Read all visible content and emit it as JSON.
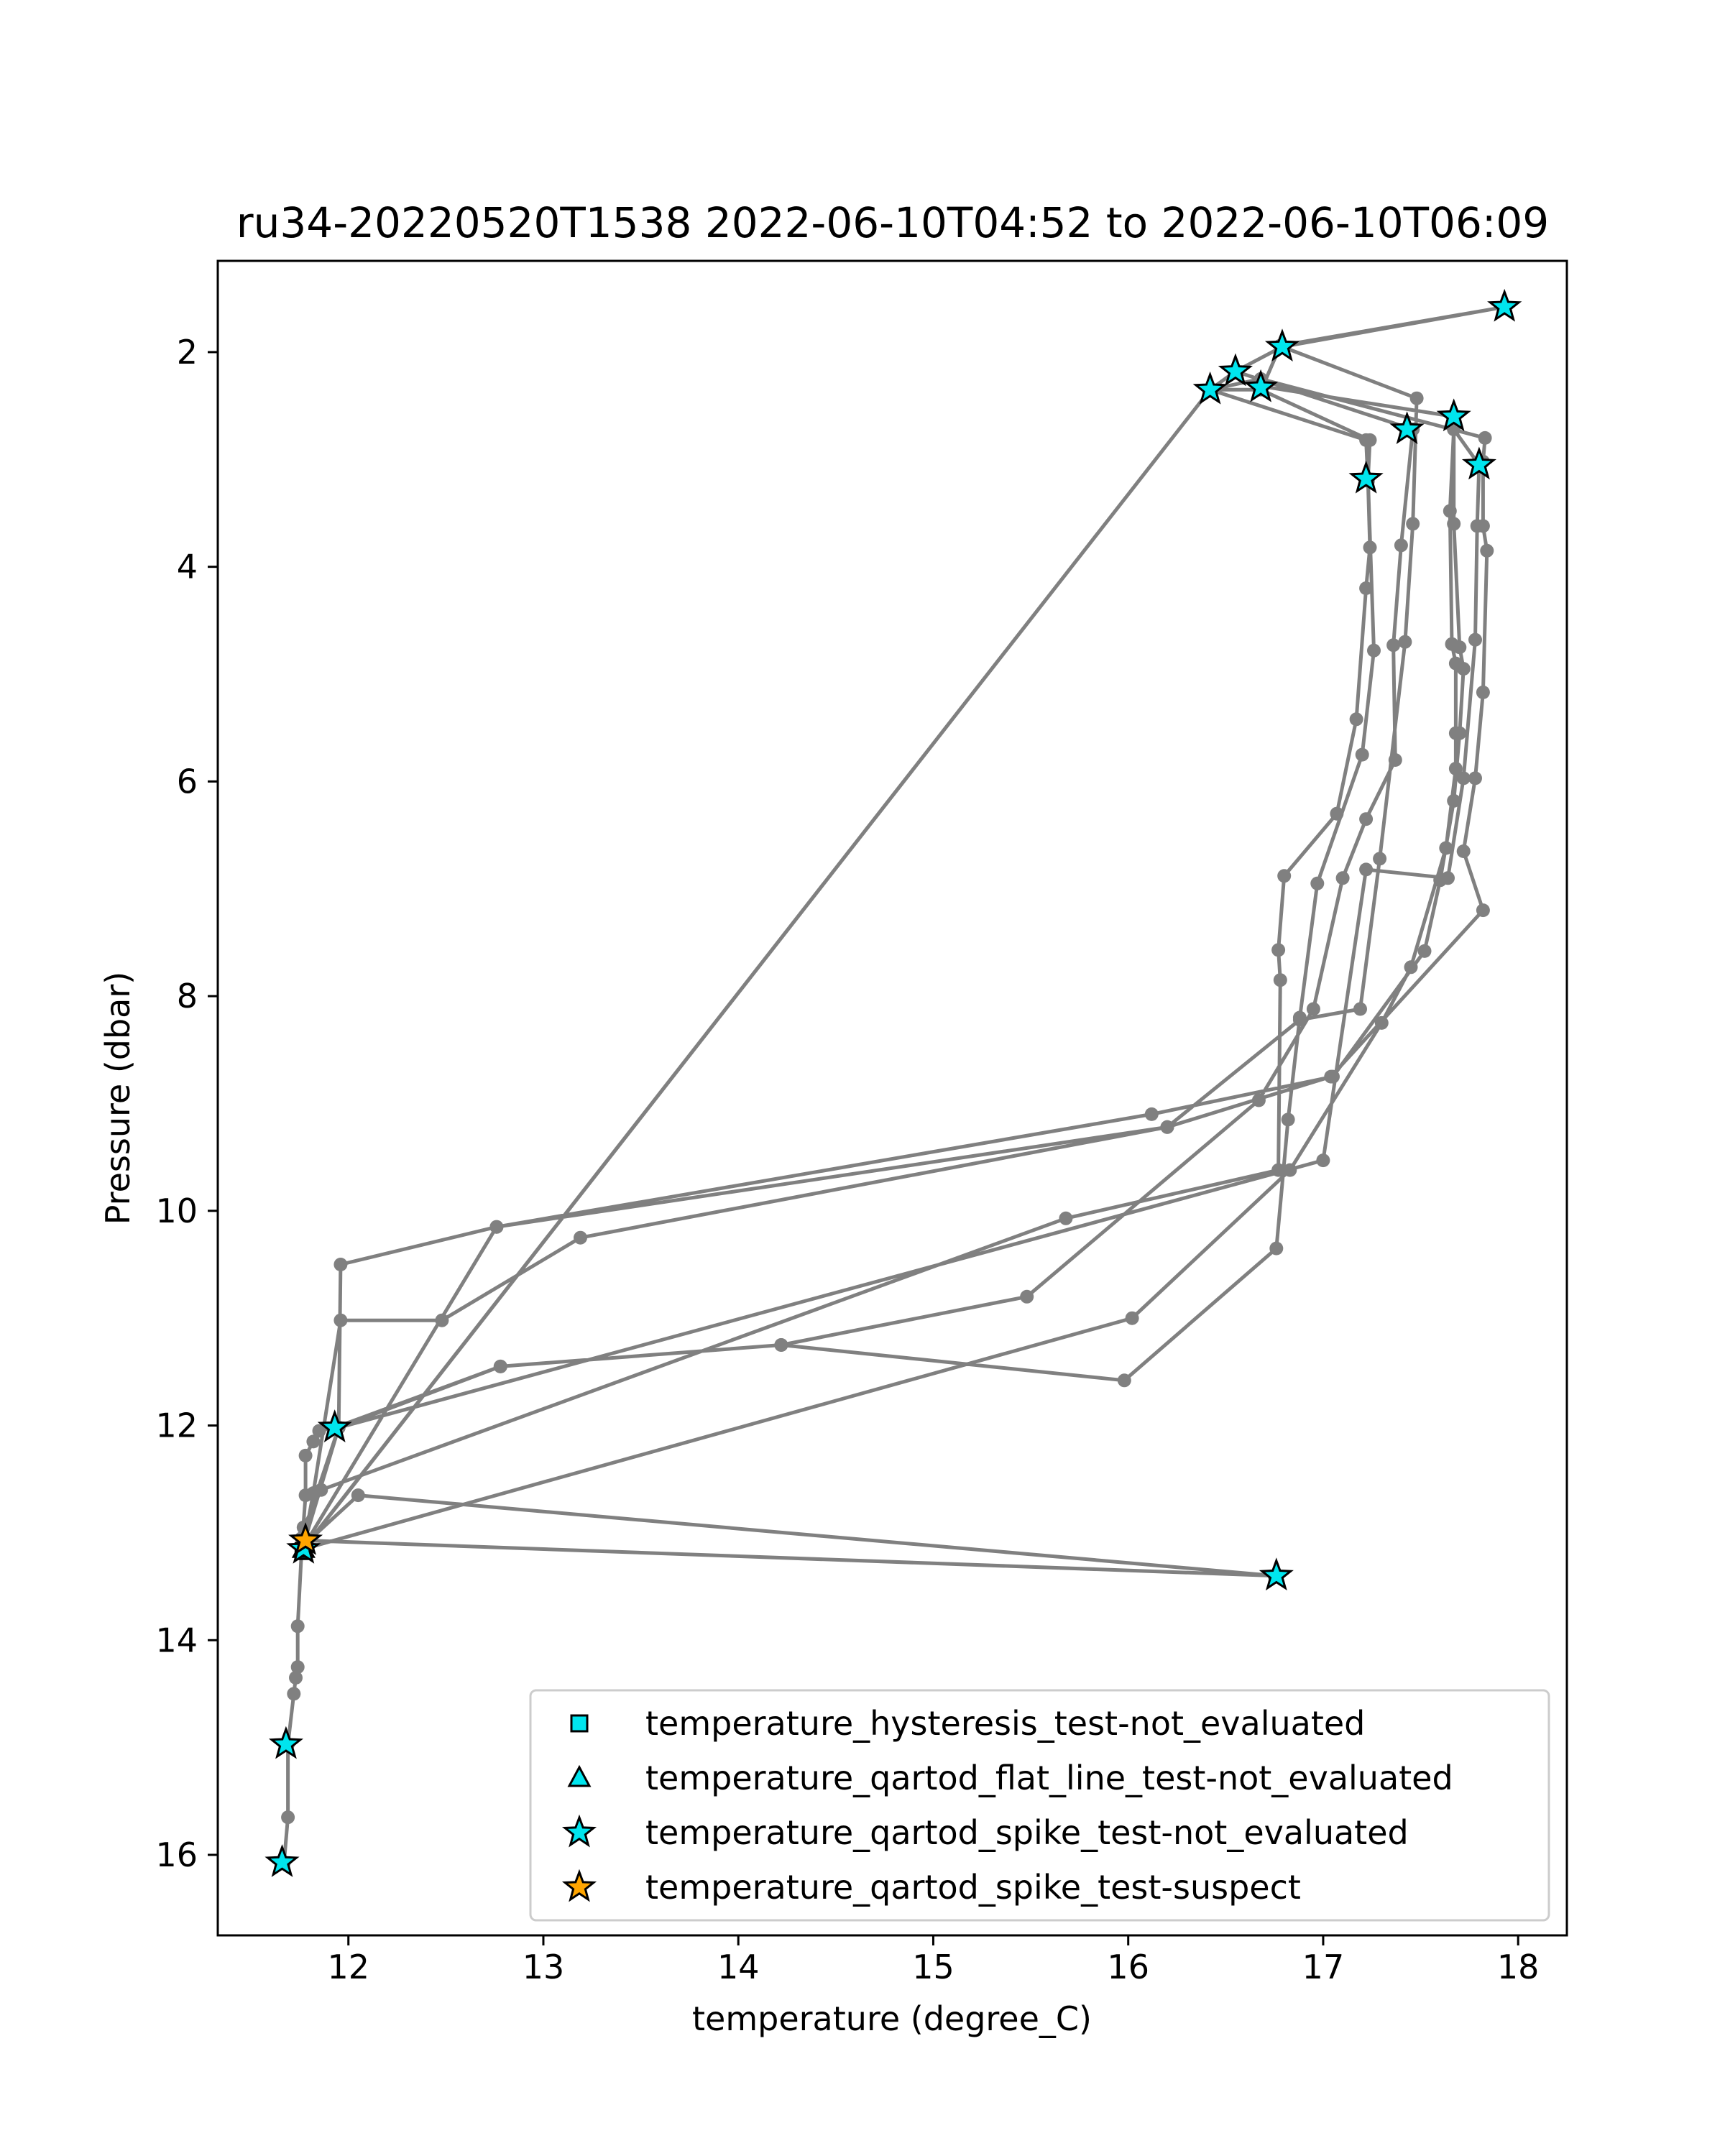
{
  "chart_data": {
    "type": "scatter",
    "title": "ru34-20220520T1538 2022-06-10T04:52 to 2022-06-10T06:09",
    "xlabel": "temperature (degree_C)",
    "ylabel": "Pressure (dbar)",
    "xlim": [
      11.33,
      18.25
    ],
    "ylim": [
      16.75,
      1.15
    ],
    "y_inverted": true,
    "x_ticks": [
      12,
      13,
      14,
      15,
      16,
      17,
      18
    ],
    "y_ticks": [
      2,
      4,
      6,
      8,
      10,
      12,
      14,
      16
    ],
    "grid": false,
    "legend_position": "lower-right",
    "profile_track": {
      "name": "",
      "color": "#808080",
      "points": [
        [
          11.67,
          16.07
        ],
        [
          11.69,
          15.65
        ],
        [
          11.69,
          14.97
        ],
        [
          11.72,
          14.5
        ],
        [
          11.73,
          14.35
        ],
        [
          11.74,
          14.25
        ],
        [
          11.74,
          13.87
        ],
        [
          11.76,
          13.17
        ],
        [
          11.78,
          12.65
        ],
        [
          11.78,
          12.28
        ],
        [
          11.82,
          12.15
        ],
        [
          11.85,
          12.05
        ],
        [
          11.93,
          12.02
        ],
        [
          12.78,
          11.45
        ],
        [
          14.22,
          11.25
        ],
        [
          15.98,
          11.58
        ],
        [
          16.76,
          10.35
        ],
        [
          16.82,
          9.15
        ],
        [
          16.88,
          8.2
        ],
        [
          16.97,
          6.95
        ],
        [
          17.2,
          5.75
        ],
        [
          17.26,
          4.78
        ],
        [
          17.23,
          3.18
        ],
        [
          17.24,
          2.82
        ],
        [
          16.68,
          2.35
        ],
        [
          16.42,
          2.35
        ],
        [
          16.55,
          2.18
        ],
        [
          16.79,
          1.95
        ],
        [
          17.48,
          2.43
        ],
        [
          17.46,
          3.6
        ],
        [
          17.42,
          4.7
        ],
        [
          17.29,
          6.72
        ],
        [
          17.19,
          8.12
        ],
        [
          16.88,
          8.22
        ],
        [
          16.2,
          9.22
        ],
        [
          13.19,
          10.25
        ],
        [
          12.48,
          11.02
        ],
        [
          11.96,
          11.02
        ],
        [
          11.82,
          12.63
        ],
        [
          11.77,
          13.12
        ],
        [
          11.76,
          13.05
        ],
        [
          11.95,
          12.02
        ],
        [
          11.96,
          10.5
        ],
        [
          12.76,
          10.15
        ],
        [
          16.12,
          9.1
        ],
        [
          17.05,
          8.75
        ],
        [
          17.52,
          7.58
        ],
        [
          17.6,
          6.92
        ],
        [
          17.67,
          6.18
        ],
        [
          17.7,
          5.55
        ],
        [
          17.72,
          4.95
        ],
        [
          17.7,
          4.75
        ],
        [
          17.67,
          3.6
        ],
        [
          17.67,
          2.6
        ],
        [
          16.69,
          2.32
        ],
        [
          16.78,
          1.94
        ],
        [
          17.93,
          1.58
        ],
        [
          16.79,
          1.95
        ],
        [
          16.55,
          2.18
        ],
        [
          17.46,
          2.72
        ],
        [
          17.4,
          3.8
        ],
        [
          17.36,
          4.73
        ],
        [
          17.37,
          5.8
        ],
        [
          17.22,
          6.35
        ],
        [
          17.1,
          6.9
        ],
        [
          16.95,
          8.12
        ],
        [
          16.67,
          8.97
        ],
        [
          15.48,
          10.8
        ],
        [
          14.22,
          11.25
        ],
        [
          12.78,
          11.45
        ],
        [
          11.95,
          12.02
        ],
        [
          11.76,
          13.17
        ],
        [
          11.77,
          13.07
        ],
        [
          16.75,
          13.4
        ],
        [
          12.05,
          12.65
        ],
        [
          11.78,
          13.1
        ],
        [
          12.76,
          10.15
        ],
        [
          16.2,
          9.22
        ],
        [
          17.04,
          8.75
        ],
        [
          17.82,
          7.2
        ],
        [
          17.72,
          6.65
        ],
        [
          17.78,
          5.97
        ],
        [
          17.82,
          5.17
        ],
        [
          17.84,
          3.85
        ],
        [
          17.82,
          3.62
        ],
        [
          17.82,
          3.02
        ],
        [
          17.83,
          2.8
        ],
        [
          16.68,
          2.25
        ],
        [
          16.42,
          2.35
        ],
        [
          11.79,
          13.1
        ],
        [
          11.77,
          12.95
        ],
        [
          11.86,
          12.6
        ],
        [
          15.68,
          10.07
        ],
        [
          16.77,
          9.62
        ],
        [
          16.78,
          7.85
        ],
        [
          16.77,
          7.57
        ],
        [
          16.8,
          6.88
        ],
        [
          17.07,
          6.3
        ],
        [
          17.17,
          5.42
        ],
        [
          17.22,
          4.2
        ],
        [
          17.24,
          3.82
        ],
        [
          17.23,
          3.2
        ],
        [
          17.22,
          2.82
        ],
        [
          16.42,
          2.35
        ],
        [
          11.77,
          13.15
        ],
        [
          16.02,
          11.0
        ],
        [
          16.83,
          9.62
        ],
        [
          17.3,
          8.25
        ],
        [
          17.45,
          7.73
        ],
        [
          17.63,
          6.62
        ],
        [
          17.68,
          5.88
        ],
        [
          17.68,
          5.55
        ],
        [
          17.68,
          4.9
        ],
        [
          17.66,
          4.72
        ],
        [
          17.65,
          3.48
        ],
        [
          17.67,
          2.72
        ],
        [
          17.8,
          3.05
        ],
        [
          17.79,
          3.62
        ],
        [
          17.78,
          4.68
        ],
        [
          17.72,
          5.97
        ],
        [
          17.64,
          6.9
        ],
        [
          17.22,
          6.82
        ],
        [
          17.0,
          9.53
        ],
        [
          11.95,
          12.02
        ]
      ]
    },
    "series": [
      {
        "name": "temperature_hysteresis_test-not_evaluated",
        "marker": "square",
        "color": "#00e5ee",
        "points": [
          [
            11.77,
            13.17
          ]
        ]
      },
      {
        "name": "temperature_qartod_flat_line_test-not_evaluated",
        "marker": "triangle",
        "color": "#00e5ee",
        "points": [
          [
            11.77,
            13.15
          ]
        ]
      },
      {
        "name": "temperature_qartod_spike_test-not_evaluated",
        "marker": "star",
        "color": "#00e5ee",
        "points": [
          [
            17.93,
            1.58
          ],
          [
            16.79,
            1.95
          ],
          [
            16.55,
            2.18
          ],
          [
            16.42,
            2.35
          ],
          [
            16.68,
            2.33
          ],
          [
            17.67,
            2.6
          ],
          [
            17.43,
            2.72
          ],
          [
            17.8,
            3.05
          ],
          [
            17.22,
            3.18
          ],
          [
            11.93,
            12.02
          ],
          [
            11.77,
            13.15
          ],
          [
            16.76,
            13.4
          ],
          [
            11.68,
            14.97
          ],
          [
            11.66,
            16.07
          ]
        ]
      },
      {
        "name": "temperature_qartod_spike_test-suspect",
        "marker": "star",
        "color": "#ffa500",
        "points": [
          [
            11.78,
            13.07
          ]
        ]
      }
    ]
  }
}
